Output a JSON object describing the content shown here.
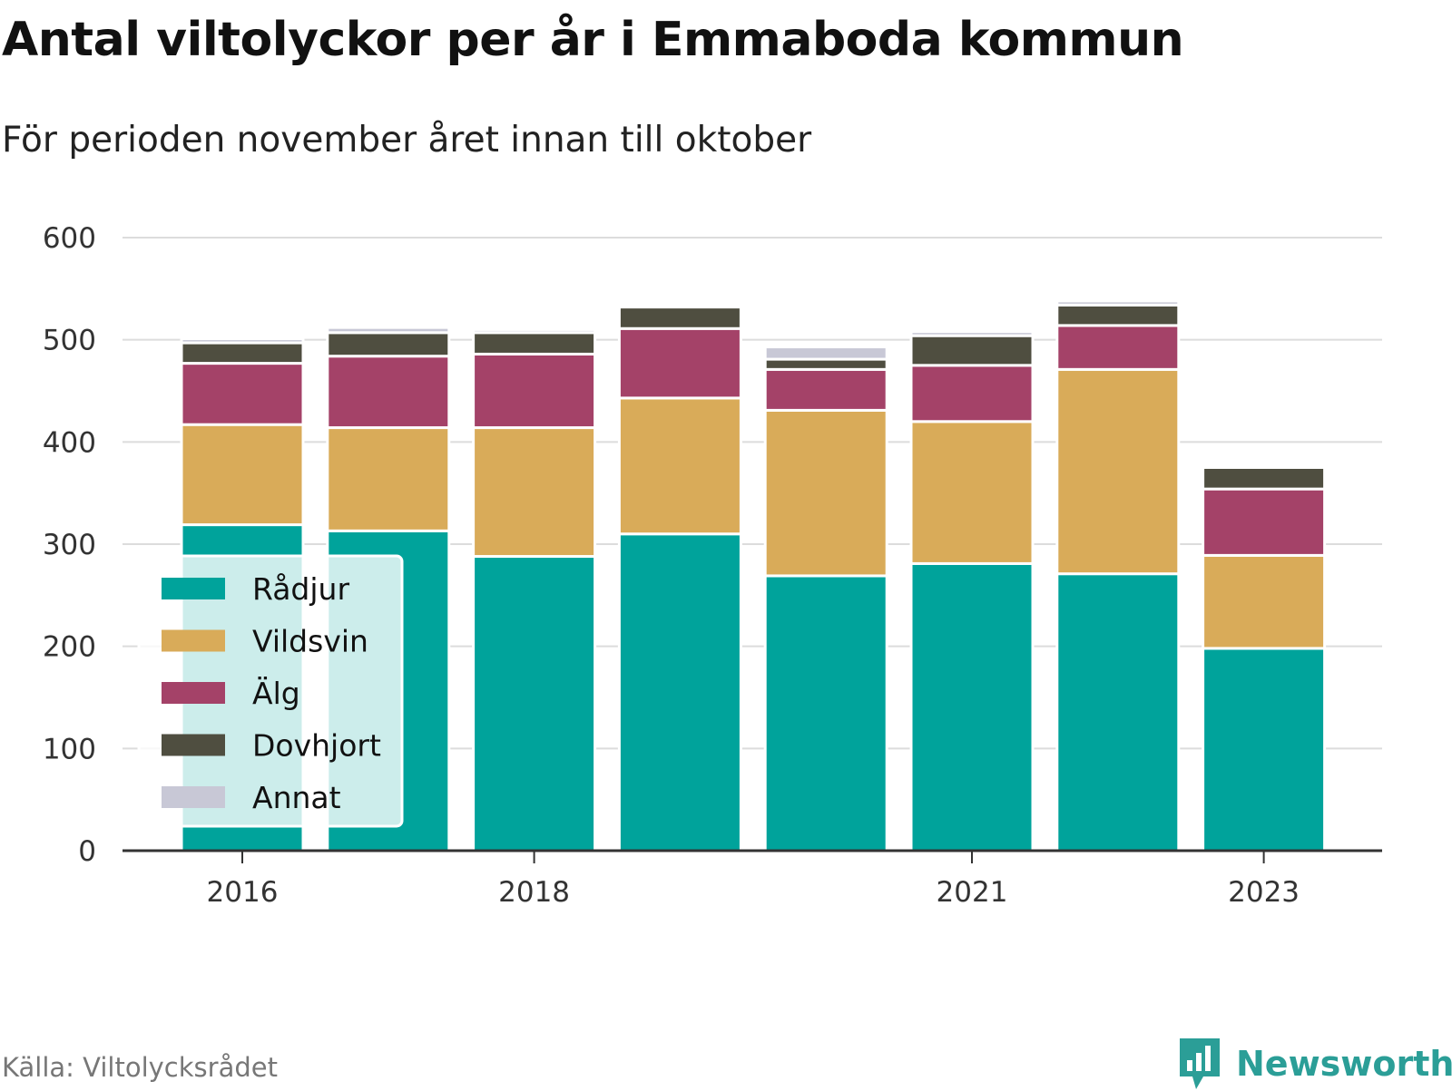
{
  "title": "Antal viltolyckor per år i Emmaboda kommun",
  "subtitle": "För perioden november året innan till oktober",
  "source": "Källa: Viltolycksrådet",
  "brand": {
    "name": "Newsworthy",
    "icon": "newsworthy-logo-icon",
    "color": "#2b9e97"
  },
  "chart_data": {
    "type": "bar",
    "stacked": true,
    "categories": [
      "2016",
      "2017",
      "2018",
      "2019",
      "2020",
      "2021",
      "2022",
      "2023"
    ],
    "x_tick_labels": [
      "2016",
      "2018",
      "2021",
      "2023"
    ],
    "ylim": [
      0,
      600
    ],
    "y_ticks": [
      0,
      100,
      200,
      300,
      400,
      500,
      600
    ],
    "grid": true,
    "legend_position": "bottom-left",
    "series": [
      {
        "name": "Rådjur",
        "color": "#00a39b",
        "values": [
          319,
          313,
          288,
          310,
          269,
          281,
          271,
          198
        ]
      },
      {
        "name": "Vildsvin",
        "color": "#d9ab59",
        "values": [
          98,
          101,
          126,
          133,
          162,
          139,
          200,
          91
        ]
      },
      {
        "name": "Älg",
        "color": "#a44268",
        "values": [
          60,
          70,
          72,
          68,
          40,
          55,
          43,
          65
        ]
      },
      {
        "name": "Dovhjort",
        "color": "#4f4e40",
        "values": [
          20,
          23,
          21,
          21,
          10,
          29,
          20,
          21
        ]
      },
      {
        "name": "Annat",
        "color": "#c8c8d6",
        "values": [
          4,
          5,
          3,
          0,
          12,
          4,
          4,
          0
        ]
      }
    ]
  }
}
